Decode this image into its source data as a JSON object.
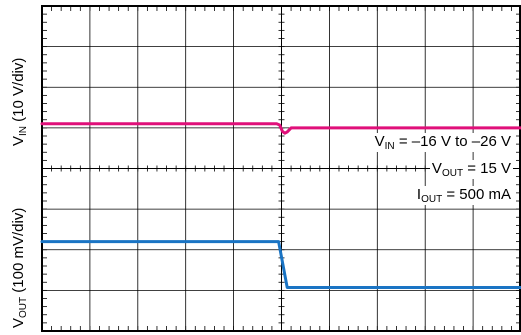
{
  "chart_data": [
    {
      "type": "line",
      "ylabel": {
        "symbol": "V",
        "sub": "IN",
        "rest": " (10 V/div)"
      },
      "grid": true,
      "x_divisions": 10,
      "y_divisions": 4,
      "series": [
        {
          "color": "#e0107a",
          "x_div": [
            0,
            4.9,
            4.96,
            5.02,
            5.07,
            5.12,
            5.2,
            10
          ],
          "y_div": [
            1.1,
            1.1,
            1.07,
            0.91,
            0.87,
            0.9,
            1.0,
            1.0
          ]
        }
      ]
    },
    {
      "type": "line",
      "ylabel": {
        "symbol": "V",
        "sub": "OUT",
        "rest": " (100 mV/div)"
      },
      "grid": true,
      "x_divisions": 10,
      "y_divisions": 4,
      "series": [
        {
          "color": "#1a74c4",
          "x_div": [
            0,
            4.94,
            5.12,
            10
          ],
          "y_div": [
            2.2,
            2.2,
            1.07,
            1.07
          ]
        }
      ]
    }
  ],
  "annotations": [
    {
      "symbol": "V",
      "sub": "IN",
      "text": " = –16 V to –26 V"
    },
    {
      "symbol": "V",
      "sub": "OUT",
      "text": " = 15 V"
    },
    {
      "symbol": "I",
      "sub": "OUT",
      "text": " = 500 mA"
    }
  ],
  "colors": {
    "grid": "#000000",
    "background": "#ffffff"
  }
}
